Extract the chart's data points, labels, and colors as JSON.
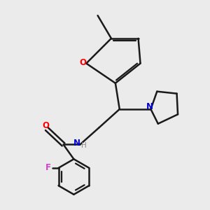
{
  "background_color": "#ebebeb",
  "bond_color": "#1a1a1a",
  "O_color": "#ff0000",
  "N_color": "#0000cc",
  "F_color": "#cc44cc",
  "line_width": 1.8,
  "figsize": [
    3.0,
    3.0
  ],
  "dpi": 100,
  "xlim": [
    0,
    10
  ],
  "ylim": [
    0,
    10
  ]
}
